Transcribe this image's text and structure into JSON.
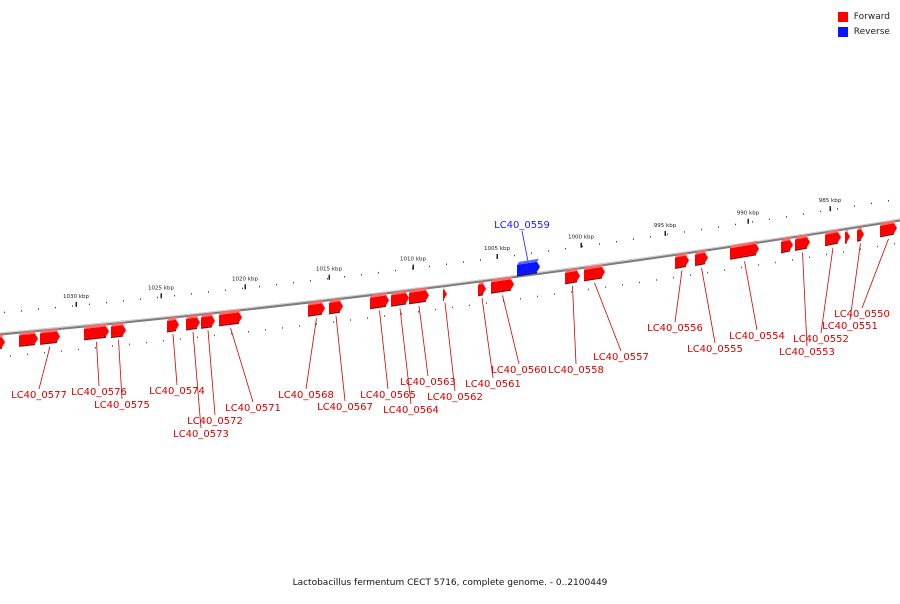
{
  "colors": {
    "forward": "#ff0000",
    "reverse": "#0a14ff",
    "forward_label": "#d40000",
    "reverse_label": "#1a1aff",
    "backbone": "#888888"
  },
  "legend": [
    {
      "label": "Forward",
      "color": "#ff0000"
    },
    {
      "label": "Reverse",
      "color": "#0a14ff"
    }
  ],
  "scale_labels": [
    "1030 kbp",
    "1025 kbp",
    "1020 kbp",
    "1015 kbp",
    "1010 kbp",
    "1005 kbp",
    "1000 kbp",
    "995 kbp",
    "990 kbp",
    "985 kbp"
  ],
  "genes": [
    {
      "name": "LC40_0550",
      "strand": "forward"
    },
    {
      "name": "LC40_0551",
      "strand": "forward"
    },
    {
      "name": "LC40_0552",
      "strand": "forward"
    },
    {
      "name": "LC40_0553",
      "strand": "forward"
    },
    {
      "name": "LC40_0554",
      "strand": "forward"
    },
    {
      "name": "LC40_0555",
      "strand": "forward"
    },
    {
      "name": "LC40_0556",
      "strand": "forward"
    },
    {
      "name": "LC40_0557",
      "strand": "forward"
    },
    {
      "name": "LC40_0558",
      "strand": "forward"
    },
    {
      "name": "LC40_0559",
      "strand": "reverse"
    },
    {
      "name": "LC40_0560",
      "strand": "forward"
    },
    {
      "name": "LC40_0561",
      "strand": "forward"
    },
    {
      "name": "LC40_0562",
      "strand": "forward"
    },
    {
      "name": "LC40_0563",
      "strand": "forward"
    },
    {
      "name": "LC40_0564",
      "strand": "forward"
    },
    {
      "name": "LC40_0565",
      "strand": "forward"
    },
    {
      "name": "LC40_0567",
      "strand": "forward"
    },
    {
      "name": "LC40_0568",
      "strand": "forward"
    },
    {
      "name": "LC40_0571",
      "strand": "forward"
    },
    {
      "name": "LC40_0572",
      "strand": "forward"
    },
    {
      "name": "LC40_0573",
      "strand": "forward"
    },
    {
      "name": "LC40_0574",
      "strand": "forward"
    },
    {
      "name": "LC40_0575",
      "strand": "forward"
    },
    {
      "name": "LC40_0576",
      "strand": "forward"
    },
    {
      "name": "LC40_0577",
      "strand": "forward"
    }
  ],
  "caption": "Lactobacillus fermentum CECT 5716, complete genome. - 0..2100449"
}
